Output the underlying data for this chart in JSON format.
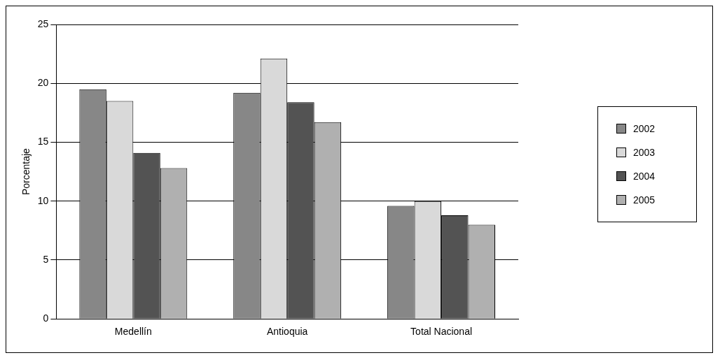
{
  "chart_data": {
    "type": "bar",
    "ylabel": "Porcentaje",
    "categories": [
      "Medellín",
      "Antioquia",
      "Total Nacional"
    ],
    "series": [
      {
        "name": "2002",
        "color": "#878787",
        "values": [
          19.5,
          19.2,
          9.6
        ]
      },
      {
        "name": "2003",
        "color": "#d9d9d9",
        "values": [
          18.5,
          22.1,
          10.0
        ]
      },
      {
        "name": "2004",
        "color": "#535353",
        "values": [
          14.1,
          18.4,
          8.8
        ]
      },
      {
        "name": "2005",
        "color": "#b0b0b0",
        "values": [
          12.8,
          16.7,
          8.0
        ]
      }
    ],
    "ylim": [
      0,
      25
    ],
    "yticks": [
      0,
      5,
      10,
      15,
      20,
      25
    ],
    "grid": "y",
    "legend": "right"
  }
}
